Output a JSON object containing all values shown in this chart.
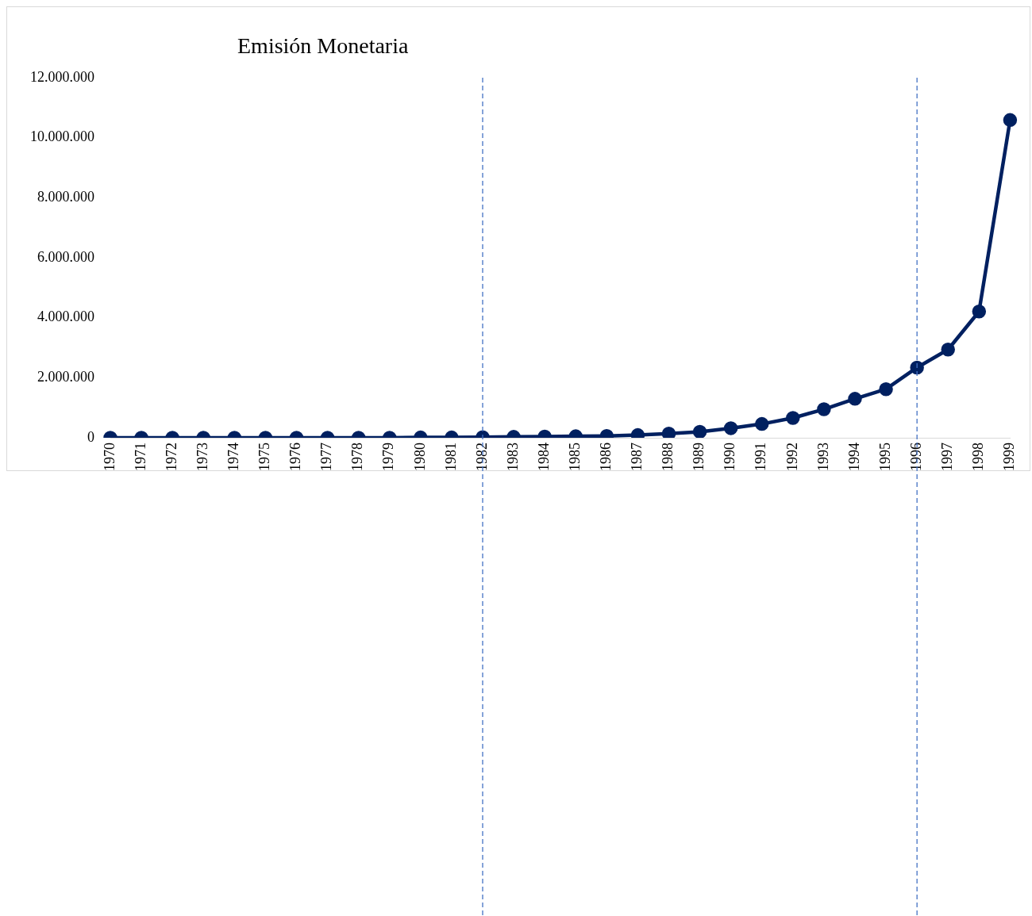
{
  "chart_data": {
    "type": "line",
    "title": "Emisión Monetaria",
    "categories": [
      "1970",
      "1971",
      "1972",
      "1973",
      "1974",
      "1975",
      "1976",
      "1977",
      "1978",
      "1979",
      "1980",
      "1981",
      "1982",
      "1983",
      "1984",
      "1985",
      "1986",
      "1987",
      "1988",
      "1989",
      "1990",
      "1991",
      "1992",
      "1993",
      "1994",
      "1995",
      "1996",
      "1997",
      "1998",
      "1999"
    ],
    "series": [
      {
        "color": "#002060",
        "values": [
          0,
          0,
          0,
          0,
          0,
          0,
          0,
          0,
          0,
          0,
          10000,
          10000,
          20000,
          30000,
          40000,
          50000,
          60000,
          90000,
          140000,
          200000,
          320000,
          460000,
          660000,
          950000,
          1300000,
          1620000,
          2340000,
          2940000,
          4210000,
          10590000
        ]
      }
    ],
    "ylim": [
      0,
      12000000
    ],
    "yticks": [
      {
        "value": 0,
        "label": "0"
      },
      {
        "value": 2000000,
        "label": "2.000.000"
      },
      {
        "value": 4000000,
        "label": "4.000.000"
      },
      {
        "value": 6000000,
        "label": "6.000.000"
      },
      {
        "value": 8000000,
        "label": "8.000.000"
      },
      {
        "value": 10000000,
        "label": "10.000.000"
      },
      {
        "value": 12000000,
        "label": "12.000.000"
      }
    ],
    "ref_lines": [
      {
        "axis": "x",
        "value": "1982",
        "color": "#4472c4",
        "line_style": "dashed"
      },
      {
        "axis": "x",
        "value": "1996",
        "color": "#4472c4",
        "line_style": "dashed"
      }
    ],
    "grid": false,
    "legend": false,
    "marker": "circle",
    "line_style": "solid"
  }
}
